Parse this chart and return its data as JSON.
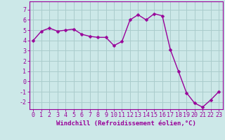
{
  "x": [
    0,
    1,
    2,
    3,
    4,
    5,
    6,
    7,
    8,
    9,
    10,
    11,
    12,
    13,
    14,
    15,
    16,
    17,
    18,
    19,
    20,
    21,
    22,
    23
  ],
  "y": [
    4.0,
    4.9,
    5.2,
    4.9,
    5.0,
    5.1,
    4.6,
    4.4,
    4.3,
    4.3,
    3.5,
    3.9,
    6.0,
    6.5,
    6.0,
    6.6,
    6.4,
    3.1,
    1.0,
    -1.1,
    -2.1,
    -2.5,
    -1.8,
    -1.0
  ],
  "line_color": "#990099",
  "marker": "D",
  "marker_size": 2.5,
  "background_color": "#cce8e8",
  "grid_color": "#aacccc",
  "xlabel": "Windchill (Refroidissement éolien,°C)",
  "xlim": [
    -0.5,
    23.5
  ],
  "ylim": [
    -2.7,
    7.8
  ],
  "yticks": [
    -2,
    -1,
    0,
    1,
    2,
    3,
    4,
    5,
    6,
    7
  ],
  "xticks": [
    0,
    1,
    2,
    3,
    4,
    5,
    6,
    7,
    8,
    9,
    10,
    11,
    12,
    13,
    14,
    15,
    16,
    17,
    18,
    19,
    20,
    21,
    22,
    23
  ],
  "tick_color": "#990099",
  "label_color": "#990099",
  "axis_color": "#990099",
  "xlabel_fontsize": 6.5,
  "tick_fontsize": 6.0,
  "line_width": 1.0
}
